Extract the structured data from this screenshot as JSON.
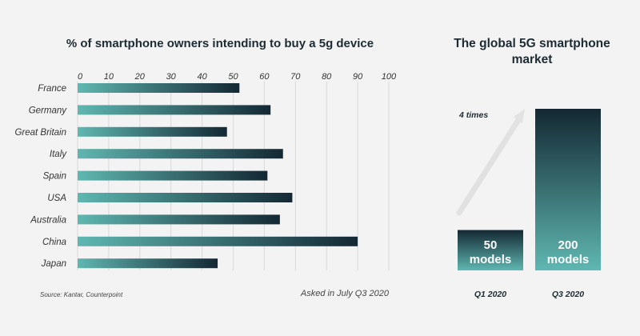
{
  "chart_data": [
    {
      "type": "bar",
      "orientation": "horizontal",
      "title": "% of smartphone owners intending to buy a 5g device",
      "categories": [
        "France",
        "Germany",
        "Great Britain",
        "Italy",
        "Spain",
        "USA",
        "Australia",
        "China",
        "Japan"
      ],
      "values": [
        52,
        62,
        48,
        66,
        61,
        69,
        65,
        90,
        45
      ],
      "xlim": [
        0,
        100
      ],
      "xticks": [
        "0",
        "10",
        "20",
        "30",
        "40",
        "50",
        "60",
        "70",
        "80",
        "90",
        "100"
      ],
      "grid": true,
      "colors": {
        "start": "#5fb7b1",
        "end": "#142833"
      }
    },
    {
      "type": "bar",
      "title": "The global 5G smartphone market",
      "categories": [
        "Q1 2020",
        "Q3 2020"
      ],
      "values": [
        50,
        200
      ],
      "value_labels": [
        [
          "50",
          "models"
        ],
        [
          "200",
          "models"
        ]
      ],
      "annotation": "4 times",
      "colors": {
        "start": "#5fb7b1",
        "end": "#142833"
      }
    }
  ],
  "footer": {
    "source": "Source: Kantar, Counterpoint",
    "asked": "Asked in July Q3 2020"
  }
}
